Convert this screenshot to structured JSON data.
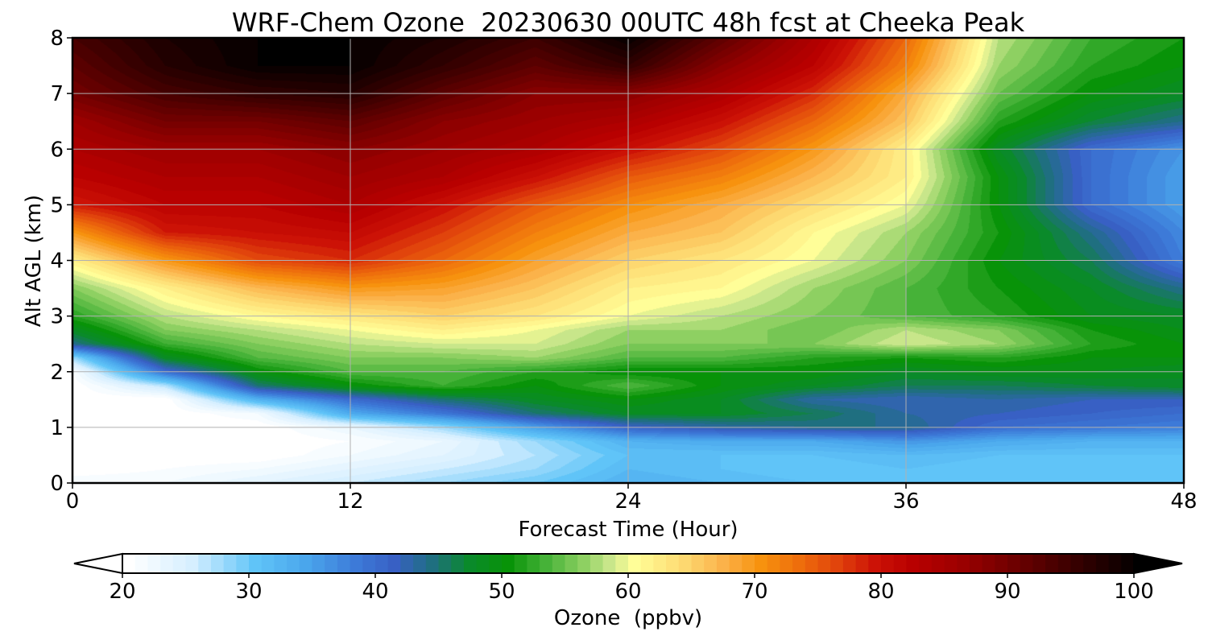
{
  "chart_data": {
    "type": "heatmap",
    "subtype": "filled-contour",
    "title": "WRF-Chem Ozone  20230630 00UTC 48h fcst at Cheeka Peak",
    "xlabel": "Forecast Time (Hour)",
    "ylabel": "Alt AGL (km)",
    "xlim": [
      0,
      48
    ],
    "ylim": [
      0,
      8
    ],
    "xticks": [
      0,
      12,
      24,
      36,
      48
    ],
    "yticks": [
      0,
      1,
      2,
      3,
      4,
      5,
      6,
      7,
      8
    ],
    "grid": true,
    "x_hours": [
      0,
      4,
      8,
      12,
      16,
      20,
      24,
      28,
      32,
      36,
      40,
      44,
      48
    ],
    "y_km": [
      0,
      0.25,
      0.5,
      0.75,
      1,
      1.25,
      1.5,
      1.75,
      2,
      2.25,
      2.5,
      2.75,
      3,
      3.5,
      4,
      4.5,
      5,
      5.5,
      6,
      6.5,
      7,
      7.5,
      8
    ],
    "ozone_ppbv": [
      [
        22,
        22,
        24,
        26,
        28,
        30,
        33,
        32,
        31,
        31,
        30,
        30,
        30
      ],
      [
        20,
        21,
        22,
        24,
        26,
        28,
        32,
        31,
        30,
        31,
        30,
        30,
        30
      ],
      [
        20,
        20,
        20,
        22,
        24,
        27,
        31,
        31,
        31,
        32,
        31,
        31,
        31
      ],
      [
        20,
        20,
        20,
        21,
        23,
        28,
        33,
        34,
        34,
        36,
        34,
        33,
        33
      ],
      [
        20,
        20,
        20,
        23,
        28,
        35,
        41,
        43,
        44,
        44,
        40,
        39,
        38
      ],
      [
        20,
        20,
        22,
        34,
        39,
        45,
        48,
        48,
        46,
        43,
        42,
        41,
        40
      ],
      [
        20,
        20,
        33,
        40,
        45,
        48,
        50,
        48,
        43,
        42,
        43,
        42,
        42
      ],
      [
        20,
        27,
        45,
        50,
        53,
        50,
        54,
        50,
        48,
        46,
        46,
        47,
        48
      ],
      [
        21,
        40,
        50,
        54,
        54,
        52,
        50,
        50,
        50,
        48,
        49,
        49,
        48
      ],
      [
        28,
        48,
        54,
        56,
        56,
        57,
        54,
        54,
        52,
        51,
        52,
        50,
        50
      ],
      [
        44,
        53,
        56,
        58,
        59,
        59,
        56,
        56,
        56,
        59,
        57,
        52,
        50
      ],
      [
        48,
        56,
        58,
        60,
        62,
        60,
        57,
        57,
        55,
        58,
        56,
        51,
        49
      ],
      [
        52,
        58,
        61,
        63,
        65,
        63,
        60,
        58,
        56,
        54,
        52,
        49,
        48
      ],
      [
        56,
        62,
        67,
        70,
        69,
        66,
        62,
        61,
        57,
        54,
        51,
        48,
        44
      ],
      [
        62,
        70,
        76,
        78,
        74,
        69,
        65,
        63,
        60,
        56,
        50,
        46,
        38
      ],
      [
        70,
        79,
        80,
        81,
        77,
        72,
        68,
        66,
        61,
        57,
        51,
        44,
        37
      ],
      [
        79,
        82,
        82,
        84,
        80,
        75,
        71,
        68,
        64,
        60,
        50,
        40,
        35
      ],
      [
        82,
        84,
        84,
        86,
        84,
        80,
        75,
        72,
        67,
        62,
        50,
        40,
        35
      ],
      [
        84,
        86,
        86,
        88,
        86,
        84,
        80,
        76,
        70,
        62,
        48,
        40,
        36
      ],
      [
        86,
        90,
        90,
        92,
        88,
        86,
        84,
        80,
        74,
        66,
        52,
        47,
        44
      ],
      [
        90,
        94,
        96,
        97,
        92,
        88,
        88,
        84,
        78,
        68,
        55,
        50,
        48
      ],
      [
        92,
        97,
        100,
        100,
        96,
        92,
        96,
        88,
        82,
        72,
        57,
        52,
        50
      ],
      [
        94,
        98,
        100,
        100,
        98,
        95,
        100,
        92,
        84,
        74,
        58,
        53,
        51
      ]
    ],
    "colorbar": {
      "label": "Ozone  (ppbv)",
      "min": 20,
      "max": 100,
      "step": 1,
      "ticks": [
        20,
        30,
        40,
        50,
        60,
        70,
        80,
        90,
        100
      ],
      "extend": "both",
      "color_stops": [
        [
          20,
          "#ffffff"
        ],
        [
          25,
          "#d6efff"
        ],
        [
          30,
          "#60c4f8"
        ],
        [
          34,
          "#4aa6ec"
        ],
        [
          38,
          "#3d7ad8"
        ],
        [
          41,
          "#3860c4"
        ],
        [
          44,
          "#1f6f80"
        ],
        [
          47,
          "#0a8a2a"
        ],
        [
          50,
          "#089308"
        ],
        [
          53,
          "#46b238"
        ],
        [
          56,
          "#8ed062"
        ],
        [
          58,
          "#c8e68a"
        ],
        [
          60,
          "#fffe98"
        ],
        [
          64,
          "#fdd870"
        ],
        [
          67,
          "#fbb24a"
        ],
        [
          70,
          "#f7920e"
        ],
        [
          73,
          "#ee6e0c"
        ],
        [
          76,
          "#e1440c"
        ],
        [
          79,
          "#cc1206"
        ],
        [
          82,
          "#b80000"
        ],
        [
          86,
          "#9a0000"
        ],
        [
          90,
          "#6e0000"
        ],
        [
          95,
          "#360000"
        ],
        [
          100,
          "#000000"
        ]
      ]
    }
  }
}
